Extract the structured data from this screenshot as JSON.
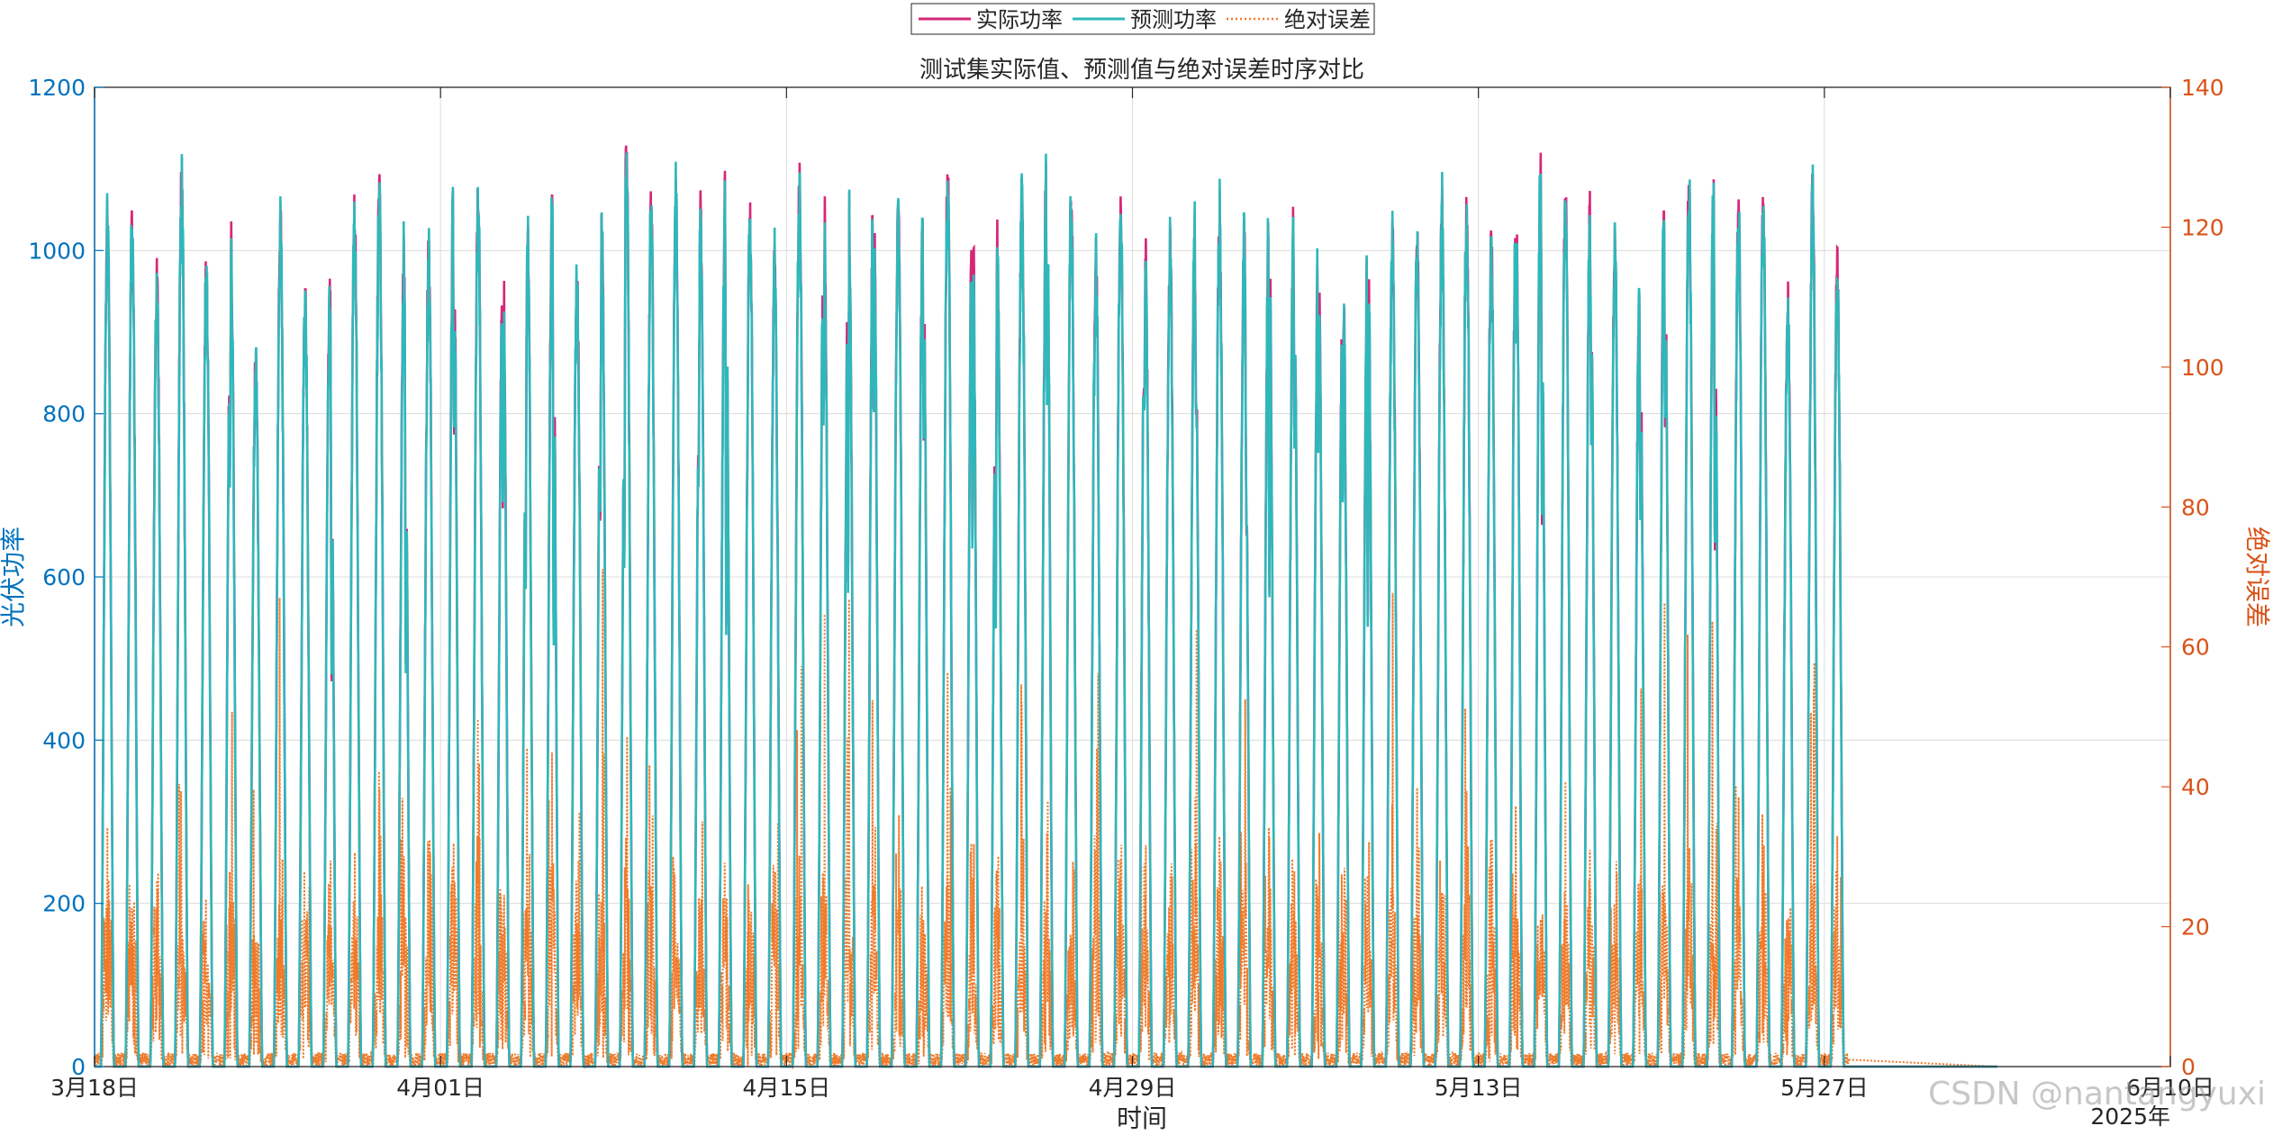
{
  "chart_data": {
    "type": "line",
    "title": "测试集实际值、预测值与绝对误差时序对比",
    "xlabel": "时间",
    "ylabel": "光伏功率",
    "y2label": "绝对误差",
    "year_label": "2025年",
    "x_ticks": [
      "3月18日",
      "4月01日",
      "4月15日",
      "4月29日",
      "5月13日",
      "5月27日",
      "6月10日"
    ],
    "x_range": [
      "2025-03-18",
      "2025-06-10"
    ],
    "data_end": "2025-06-03",
    "ylim": [
      0,
      1200
    ],
    "y_ticks": [
      0,
      200,
      400,
      600,
      800,
      1000,
      1200
    ],
    "y2lim": [
      0,
      140
    ],
    "y2_ticks": [
      0,
      20,
      40,
      60,
      80,
      100,
      120,
      140
    ],
    "grid": true,
    "legend": {
      "placement": "top-center",
      "orientation": "horizontal"
    },
    "series": [
      {
        "name": "实际功率",
        "color": "#D62778",
        "style": "solid",
        "axis": "left"
      },
      {
        "name": "预测功率",
        "color": "#2EB8BA",
        "style": "solid",
        "axis": "left"
      },
      {
        "name": "绝对误差",
        "color": "#F07A2A",
        "style": "dotted",
        "axis": "right"
      }
    ],
    "daily_peaks": [
      1078,
      1065,
      998,
      1120,
      1010,
      1042,
      887,
      1076,
      965,
      992,
      1080,
      1097,
      1024,
      1027,
      1110,
      1095,
      1041,
      1050,
      1108,
      990,
      1055,
      1160,
      1088,
      1092,
      1078,
      1102,
      1080,
      1013,
      1115,
      1098,
      1096,
      1150,
      1095,
      1085,
      1120,
      1122,
      1045,
      1104,
      1157,
      1098,
      1020,
      1090,
      1040,
      1038,
      1060,
      1078,
      1040,
      1102,
      1088,
      1050,
      1008,
      1060,
      1055,
      1050,
      1085,
      1082,
      1050,
      1108,
      1138,
      1108,
      1090,
      1042,
      985,
      1112,
      1115,
      1128,
      1098,
      1102,
      975,
      1102,
      1008
    ]
  },
  "watermark": "CSDN @nantangyuxi"
}
